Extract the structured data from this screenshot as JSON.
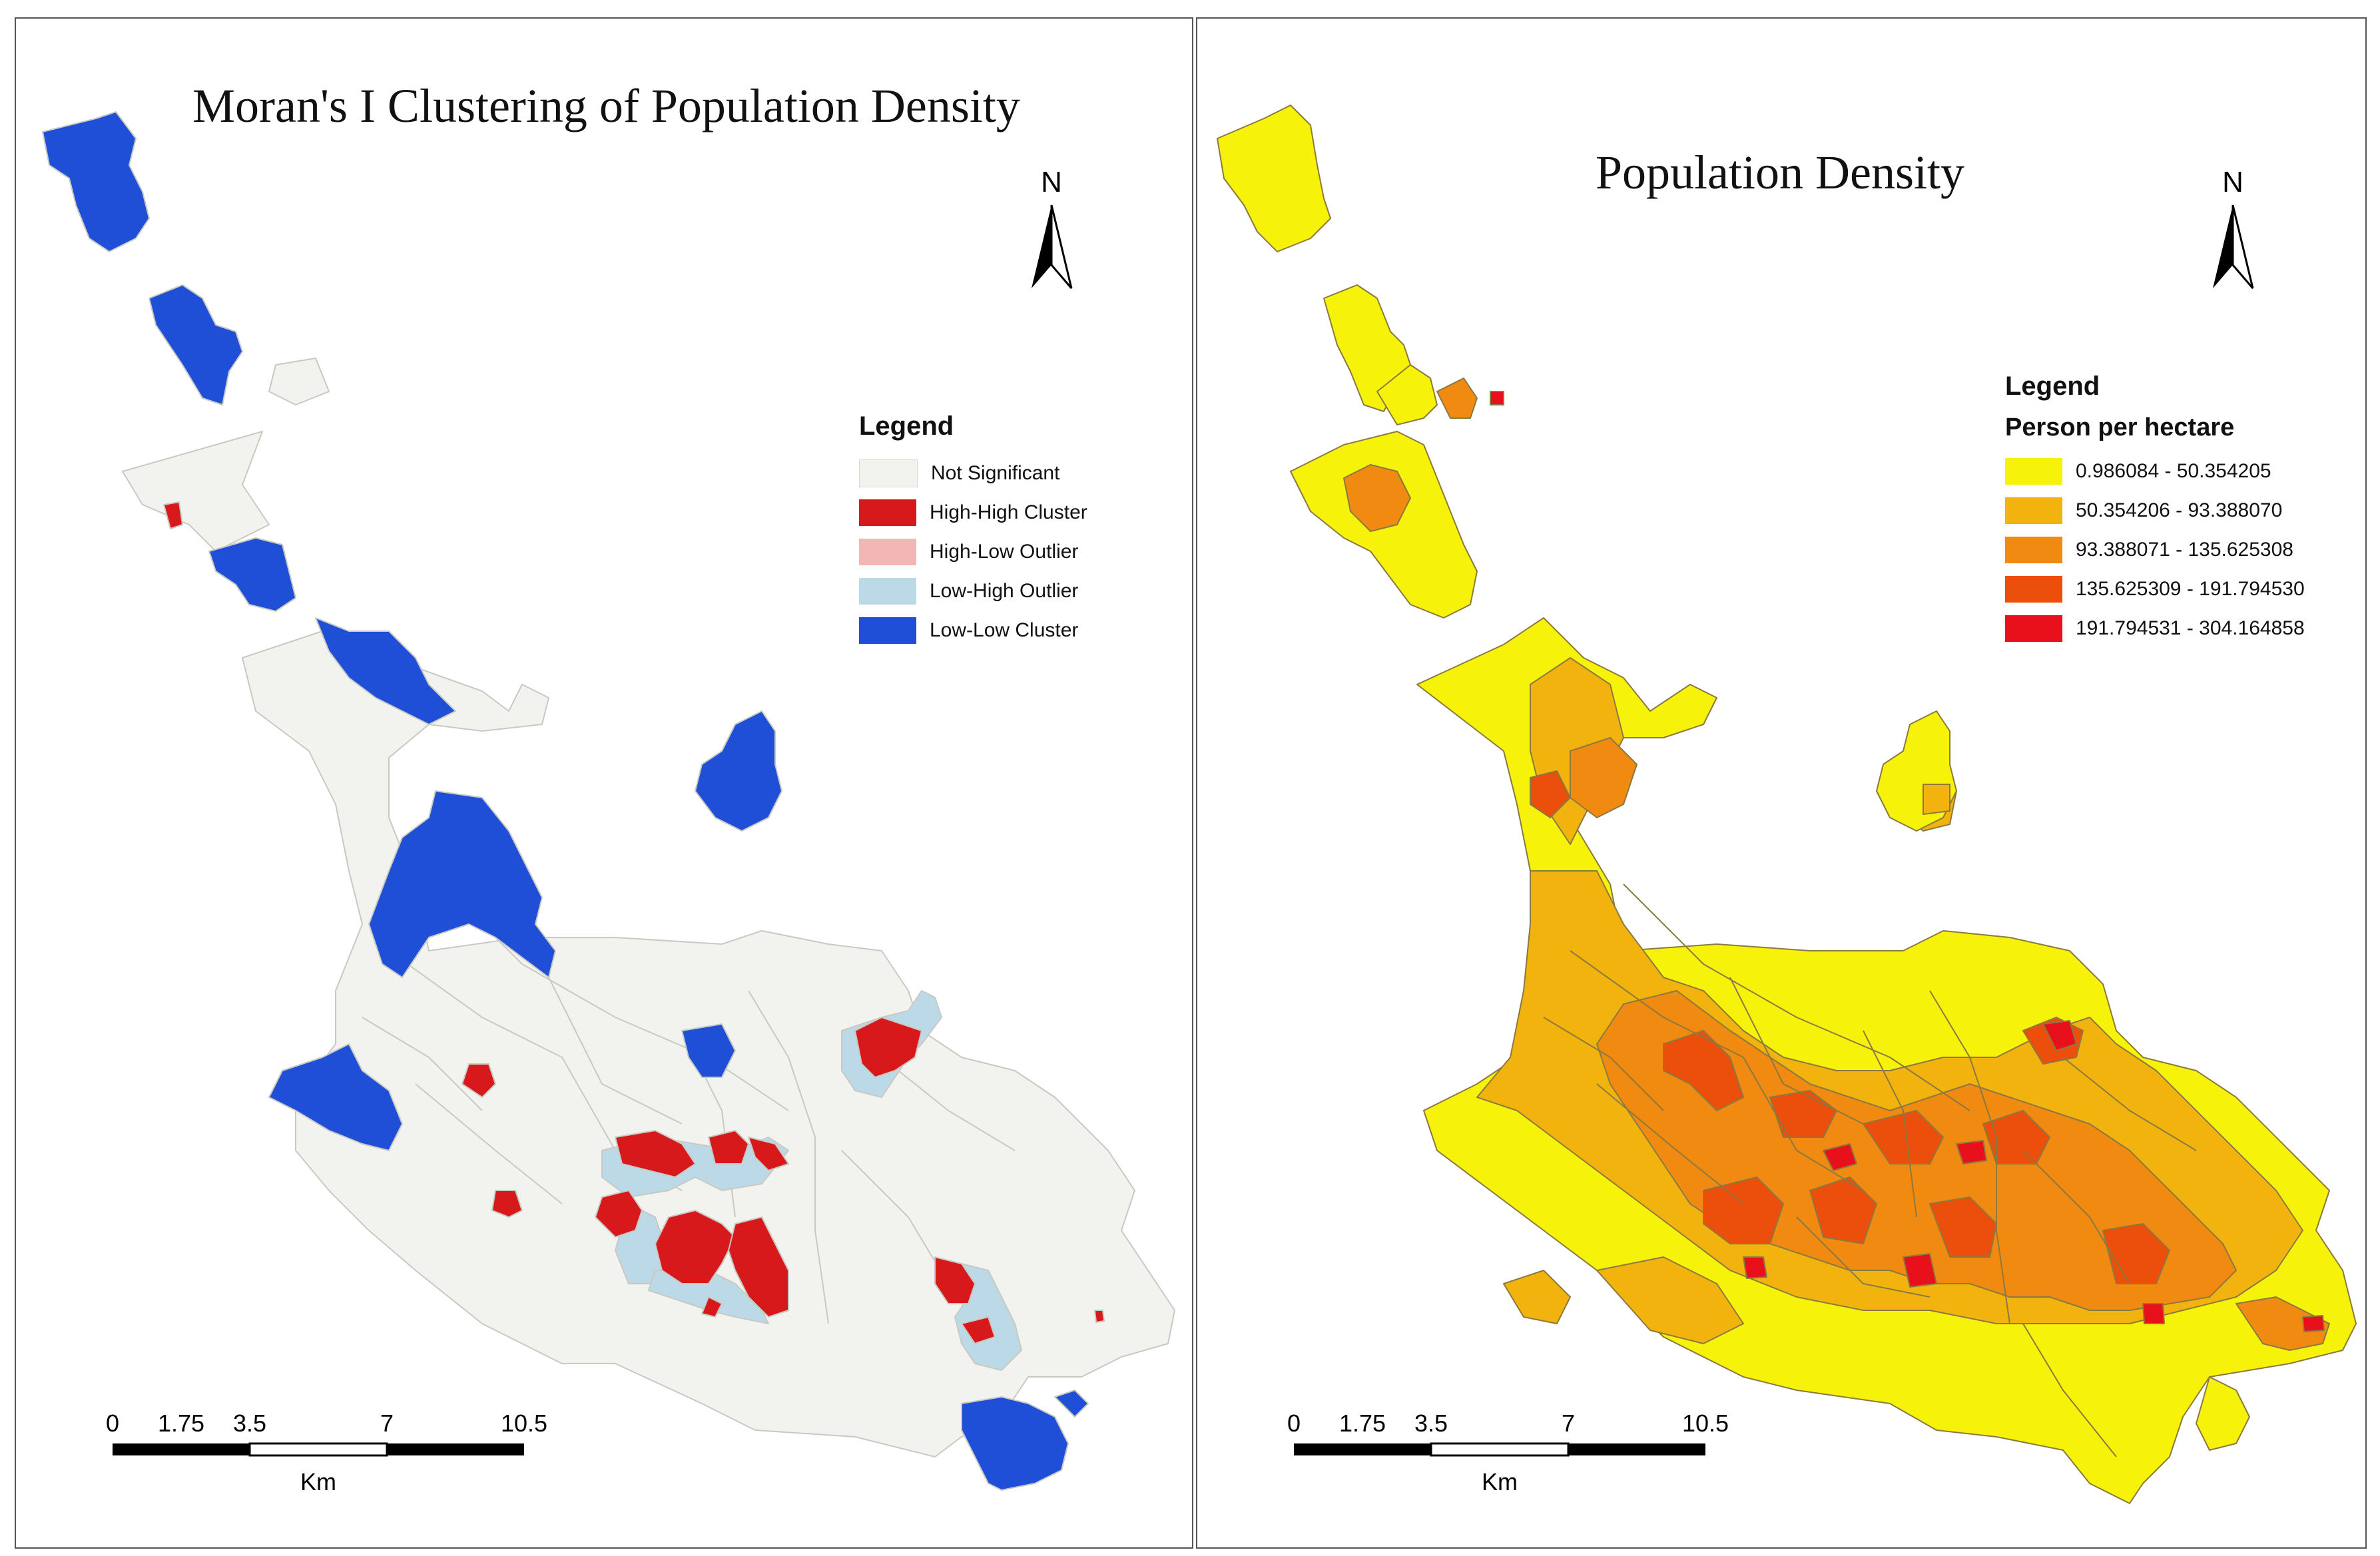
{
  "left_map": {
    "title": "Moran's I Clustering of Population Density",
    "north_label": "N",
    "legend": {
      "title": "Legend",
      "items": [
        {
          "label": "Not Significant",
          "color": "#f2f2ee"
        },
        {
          "label": "High-High Cluster",
          "color": "#d7191c"
        },
        {
          "label": "High-Low Outlier",
          "color": "#f4b6b4"
        },
        {
          "label": "Low-High Outlier",
          "color": "#bcd9e8"
        },
        {
          "label": "Low-Low Cluster",
          "color": "#1f4fd6"
        }
      ]
    },
    "scale": {
      "ticks": [
        "0",
        "1.75",
        "3.5",
        "7",
        "10.5"
      ],
      "unit": "Km"
    }
  },
  "right_map": {
    "title": "Population Density",
    "north_label": "N",
    "legend": {
      "title": "Legend",
      "subtitle": "Person per hectare",
      "items": [
        {
          "label": "0.986084 - 50.354205",
          "color": "#f7f20a"
        },
        {
          "label": "50.354206 - 93.388070",
          "color": "#f2b30f"
        },
        {
          "label": "93.388071 - 135.625308",
          "color": "#f08a10"
        },
        {
          "label": "135.625309 - 191.794530",
          "color": "#ec4e0c"
        },
        {
          "label": "191.794531 - 304.164858",
          "color": "#e8101a"
        }
      ]
    },
    "scale": {
      "ticks": [
        "0",
        "1.75",
        "3.5",
        "7",
        "10.5"
      ],
      "unit": "Km"
    }
  }
}
